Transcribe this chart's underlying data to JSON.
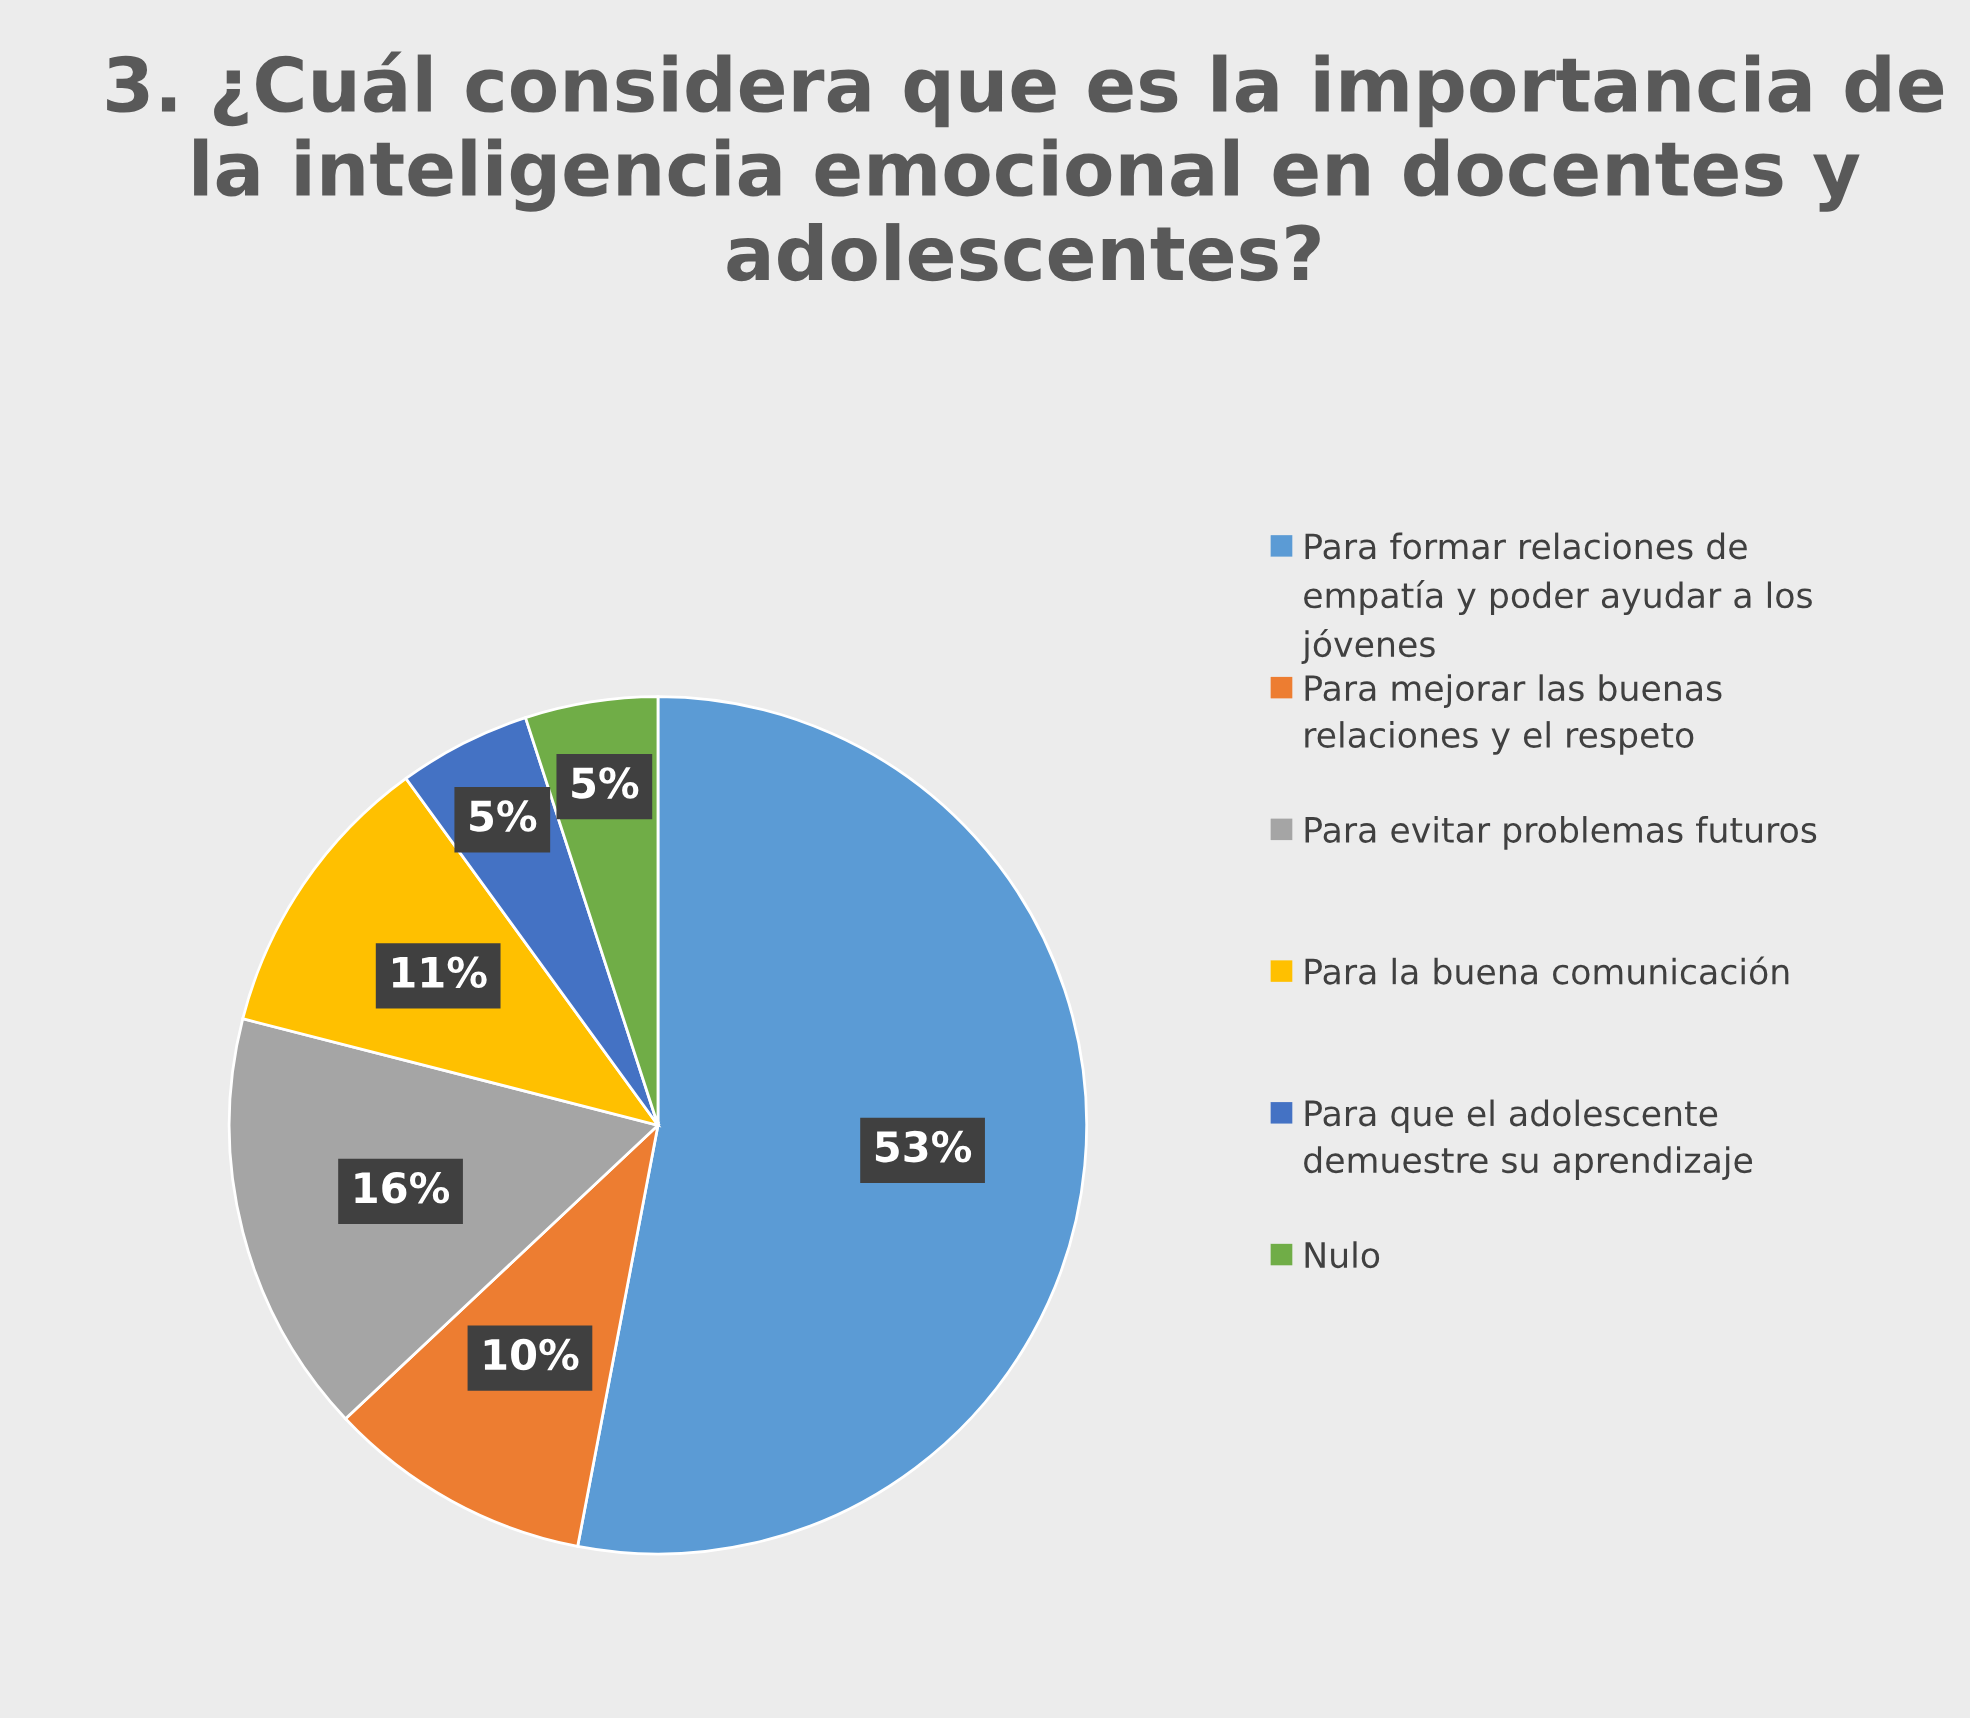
{
  "chart_data": {
    "type": "pie",
    "title": "3. ¿Cuál considera que es la importancia de la inteligencia emocional en docentes y adolescentes?",
    "categories": [
      "Para formar relaciones de empatía y poder ayudar a los jóvenes",
      "Para mejorar las buenas relaciones y el respeto",
      "Para evitar problemas futuros",
      "Para la buena comunicación",
      "Para que el adolescente demuestre su aprendizaje",
      "Nulo"
    ],
    "values": [
      53,
      10,
      16,
      11,
      5,
      5
    ],
    "value_labels": [
      "53%",
      "10%",
      "16%",
      "11%",
      "5%",
      "5%"
    ],
    "colors": [
      "#5b9bd5",
      "#ed7d31",
      "#a5a5a5",
      "#ffc000",
      "#4472c4",
      "#70ad47"
    ],
    "legend": "right"
  }
}
